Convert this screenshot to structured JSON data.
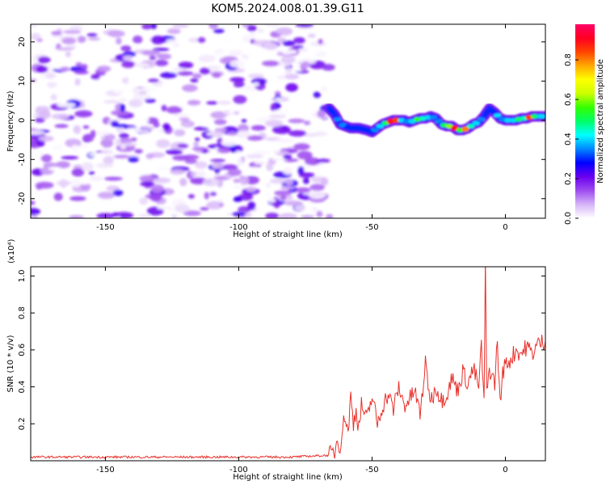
{
  "title": "KOM5.2024.008.01.39.G11",
  "chart_data": [
    {
      "type": "heatmap",
      "xlabel": "Height of straight line (km)",
      "ylabel": "Frequency (Hz)",
      "xlim": [
        -178,
        15
      ],
      "ylim": [
        -25,
        24.5
      ],
      "xticks": [
        -150,
        -100,
        -50,
        0
      ],
      "xtick_labels": [
        "-150",
        "-100",
        "-50",
        "0"
      ],
      "yticks": [
        -20,
        -10,
        0,
        10,
        20
      ],
      "ytick_labels": [
        "-20",
        "-10",
        "0",
        "10",
        "20"
      ],
      "grid": false,
      "noise_region_x": [
        -178,
        -66
      ],
      "noise_amplitude_range": [
        0.0,
        0.25
      ],
      "signal_trace": {
        "x": [
          -66,
          -64,
          -62,
          -60,
          -58,
          -55,
          -52,
          -50,
          -48,
          -46,
          -44,
          -42,
          -40,
          -38,
          -36,
          -34,
          -32,
          -30,
          -28,
          -26,
          -24,
          -22,
          -20,
          -18,
          -16,
          -14,
          -12,
          -10,
          -8,
          -6,
          -4,
          -2,
          0,
          2,
          4,
          6,
          8,
          10,
          12,
          15
        ],
        "freq": [
          3,
          1.5,
          -1,
          -1.5,
          -2,
          -2,
          -2.5,
          -3,
          -2,
          -1,
          -0.5,
          0,
          0,
          0,
          -0.5,
          0,
          0.5,
          0.5,
          1,
          0.5,
          -1,
          -1.5,
          -1.5,
          -2.5,
          -2.5,
          -2,
          -1,
          -0.5,
          1,
          3,
          2,
          0.5,
          0,
          0,
          0,
          0.5,
          0.5,
          1,
          1,
          1
        ],
        "amplitude": [
          0.15,
          0.3,
          0.35,
          0.35,
          0.3,
          0.3,
          0.3,
          0.3,
          0.35,
          0.4,
          0.5,
          0.9,
          0.85,
          0.4,
          0.35,
          0.4,
          0.55,
          0.45,
          0.4,
          0.35,
          0.35,
          0.5,
          0.6,
          0.9,
          0.55,
          0.8,
          0.45,
          0.4,
          0.35,
          0.3,
          0.3,
          0.4,
          0.35,
          0.4,
          0.4,
          0.5,
          0.45,
          0.85,
          0.5,
          0.4
        ]
      },
      "colorbar": {
        "label": "Normalized spectral amplitude",
        "range": [
          0.0,
          0.98
        ],
        "ticks": [
          0.0,
          0.2,
          0.4,
          0.6,
          0.8
        ],
        "tick_labels": [
          "0.0",
          "0.2",
          "0.4",
          "0.6",
          "0.8"
        ],
        "colors": [
          "#ffffff",
          "#d6b4f7",
          "#9e4cf0",
          "#6a00f0",
          "#0000ff",
          "#0088ff",
          "#00ffff",
          "#00ff66",
          "#33ff00",
          "#ccff00",
          "#ffff00",
          "#ffaa00",
          "#ff4400",
          "#ff0022",
          "#ff0066"
        ]
      }
    },
    {
      "type": "line",
      "xlabel": "Height of straight line (km)",
      "ylabel": "SNR (10 * v/v)",
      "y_multiplier": "(x10⁴)",
      "xlim": [
        -178,
        15
      ],
      "ylim": [
        0,
        1.05
      ],
      "xticks": [
        -150,
        -100,
        -50,
        0
      ],
      "xtick_labels": [
        "-150",
        "-100",
        "-50",
        "0"
      ],
      "yticks": [
        0.2,
        0.4,
        0.6,
        0.8,
        1.0
      ],
      "ytick_labels": [
        "0.2",
        "0.4",
        "0.6",
        "0.8",
        "1.0"
      ],
      "grid": false,
      "color": "#e8302a",
      "series": [
        {
          "x": [
            -178,
            -160,
            -140,
            -120,
            -100,
            -80,
            -66,
            -64,
            -63,
            -62,
            -61,
            -60,
            -59,
            -58,
            -57,
            -56,
            -55,
            -54,
            -52,
            -50,
            -48,
            -46,
            -44,
            -42,
            -40,
            -38,
            -36,
            -34,
            -32,
            -30,
            -28,
            -26,
            -24,
            -22,
            -20,
            -18,
            -16,
            -14,
            -12,
            -10,
            -9,
            -8,
            -7.5,
            -7,
            -6,
            -4,
            -3,
            -2,
            -1,
            0,
            2,
            4,
            6,
            8,
            10,
            12,
            15
          ],
          "y": [
            0.02,
            0.02,
            0.02,
            0.02,
            0.02,
            0.02,
            0.03,
            0.05,
            0.12,
            0.08,
            0.18,
            0.25,
            0.15,
            0.35,
            0.2,
            0.28,
            0.18,
            0.3,
            0.22,
            0.35,
            0.2,
            0.3,
            0.36,
            0.28,
            0.4,
            0.3,
            0.33,
            0.38,
            0.25,
            0.52,
            0.32,
            0.4,
            0.33,
            0.36,
            0.45,
            0.38,
            0.48,
            0.42,
            0.5,
            0.4,
            0.62,
            0.3,
            1.08,
            0.35,
            0.5,
            0.42,
            0.65,
            0.3,
            0.48,
            0.52,
            0.55,
            0.6,
            0.58,
            0.62,
            0.58,
            0.63,
            0.65
          ]
        }
      ]
    }
  ]
}
